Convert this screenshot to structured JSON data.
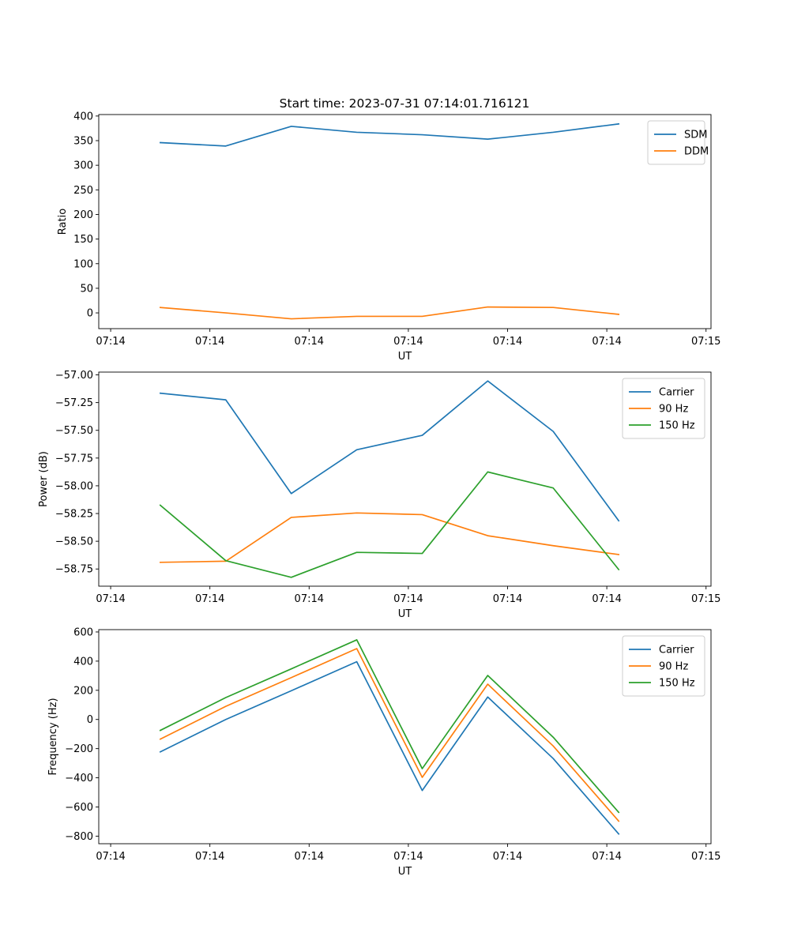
{
  "figure": {
    "title": "Start time: 2023-07-31 07:14:01.716121"
  },
  "chart_data": [
    {
      "type": "line",
      "title": "Start time: 2023-07-31 07:14:01.716121",
      "xlabel": "UT",
      "ylabel": "Ratio",
      "x_tick_labels": [
        "07:14",
        "07:14",
        "07:14",
        "07:14",
        "07:14",
        "07:14",
        "07:15"
      ],
      "x": [
        0.5,
        1.16,
        1.82,
        2.48,
        3.14,
        3.8,
        4.46,
        5.12
      ],
      "xlim": [
        -0.12,
        6.05
      ],
      "ylim": [
        -32,
        403
      ],
      "y_ticks": [
        0,
        50,
        100,
        150,
        200,
        250,
        300,
        350,
        400
      ],
      "y_tick_labels": [
        "0",
        "50",
        "100",
        "150",
        "200",
        "250",
        "300",
        "350",
        "400"
      ],
      "legend_position": "top-right",
      "series": [
        {
          "name": "SDM",
          "color": "#1f77b4",
          "values": [
            346,
            339,
            379,
            367,
            362,
            353,
            367,
            384
          ]
        },
        {
          "name": "DDM",
          "color": "#ff7f0e",
          "values": [
            11,
            0,
            -12,
            -7,
            -7,
            12,
            11,
            -3
          ]
        }
      ]
    },
    {
      "type": "line",
      "title": "",
      "xlabel": "UT",
      "ylabel": "Power (dB)",
      "x_tick_labels": [
        "07:14",
        "07:14",
        "07:14",
        "07:14",
        "07:14",
        "07:14",
        "07:15"
      ],
      "x": [
        0.5,
        1.16,
        1.82,
        2.48,
        3.14,
        3.8,
        4.46,
        5.12
      ],
      "xlim": [
        -0.12,
        6.05
      ],
      "ylim": [
        -58.905,
        -56.975
      ],
      "y_ticks": [
        -58.75,
        -58.5,
        -58.25,
        -58.0,
        -57.75,
        -57.5,
        -57.25,
        -57.0
      ],
      "y_tick_labels": [
        "−58.75",
        "−58.50",
        "−58.25",
        "−58.00",
        "−57.75",
        "−57.50",
        "−57.25",
        "−57.00"
      ],
      "legend_position": "top-right",
      "series": [
        {
          "name": "Carrier",
          "color": "#1f77b4",
          "values": [
            -57.165,
            -57.225,
            -58.07,
            -57.675,
            -57.545,
            -57.055,
            -57.51,
            -58.315
          ]
        },
        {
          "name": "90 Hz",
          "color": "#ff7f0e",
          "values": [
            -58.69,
            -58.68,
            -58.285,
            -58.245,
            -58.26,
            -58.45,
            -58.54,
            -58.62
          ]
        },
        {
          "name": "150 Hz",
          "color": "#2ca02c",
          "values": [
            -58.175,
            -58.675,
            -58.825,
            -58.6,
            -58.61,
            -57.875,
            -58.02,
            -58.755
          ]
        }
      ]
    },
    {
      "type": "line",
      "title": "",
      "xlabel": "UT",
      "ylabel": "Frequency (Hz)",
      "x_tick_labels": [
        "07:14",
        "07:14",
        "07:14",
        "07:14",
        "07:14",
        "07:14",
        "07:15"
      ],
      "x": [
        0.5,
        1.16,
        1.82,
        2.48,
        3.14,
        3.8,
        4.46,
        5.12
      ],
      "xlim": [
        -0.12,
        6.05
      ],
      "ylim": [
        -852,
        616
      ],
      "y_ticks": [
        -800,
        -600,
        -400,
        -200,
        0,
        200,
        400,
        600
      ],
      "y_tick_labels": [
        "−800",
        "−600",
        "−400",
        "−200",
        "0",
        "200",
        "400",
        "600"
      ],
      "legend_position": "top-right",
      "series": [
        {
          "name": "Carrier",
          "color": "#1f77b4",
          "values": [
            -222,
            0,
            197,
            396,
            -487,
            154,
            -268,
            -785
          ]
        },
        {
          "name": "90 Hz",
          "color": "#ff7f0e",
          "values": [
            -135,
            90,
            287,
            486,
            -397,
            242,
            -182,
            -697
          ]
        },
        {
          "name": "150 Hz",
          "color": "#2ca02c",
          "values": [
            -75,
            150,
            347,
            546,
            -337,
            302,
            -122,
            -637
          ]
        }
      ]
    }
  ]
}
